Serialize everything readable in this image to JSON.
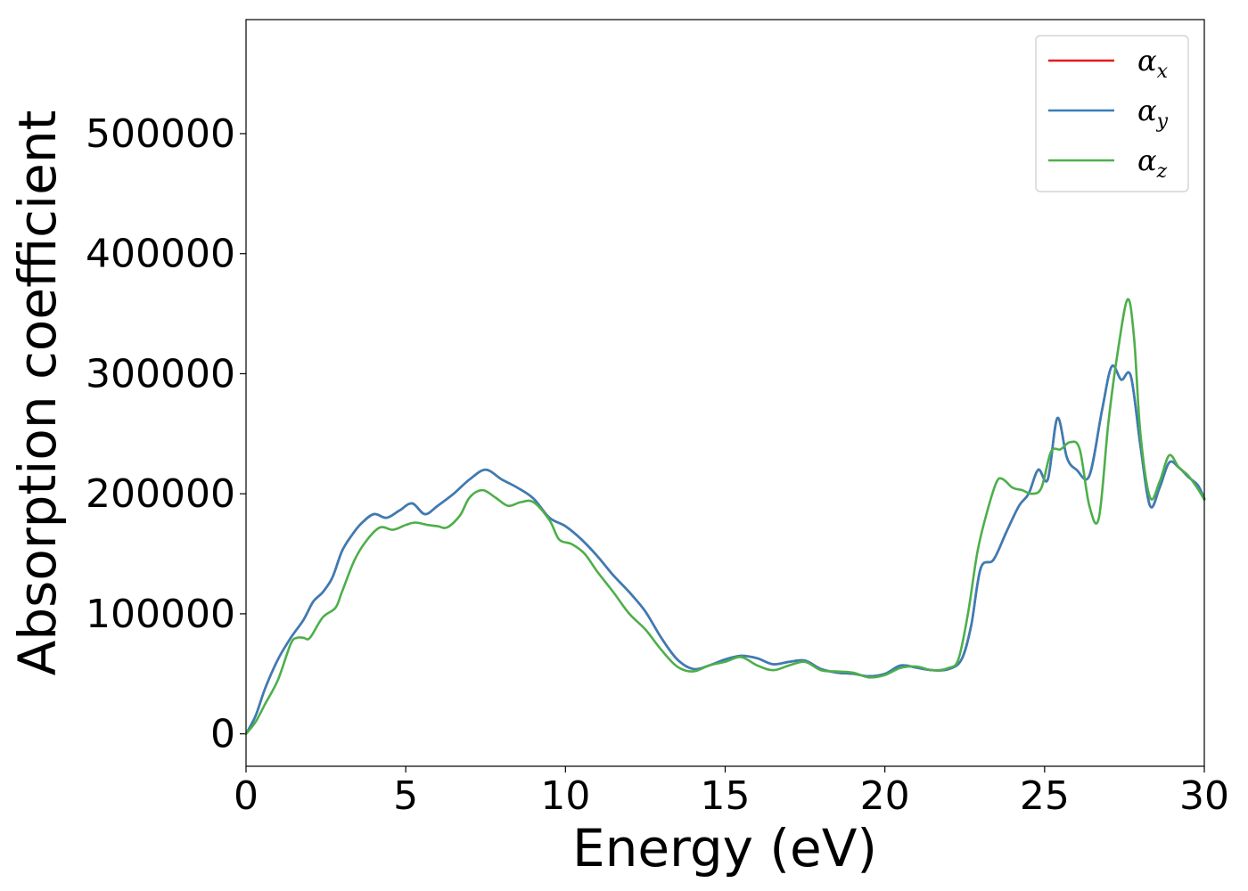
{
  "chart_data": {
    "type": "line",
    "xlabel": "Energy (eV)",
    "ylabel": "Absorption coefficient",
    "xlim": [
      0,
      30
    ],
    "ylim": [
      -27000,
      595000
    ],
    "xticks": [
      0,
      5,
      10,
      15,
      20,
      25,
      30
    ],
    "xtick_labels": [
      "0",
      "5",
      "10",
      "15",
      "20",
      "25",
      "30"
    ],
    "yticks": [
      0,
      100000,
      200000,
      300000,
      400000,
      500000
    ],
    "ytick_labels": [
      "0",
      "100000",
      "200000",
      "300000",
      "400000",
      "500000"
    ],
    "grid": false,
    "legend_position": "top-right",
    "series": [
      {
        "name": "α_x",
        "name_main": "α",
        "name_sub": "x",
        "color": "#e41a1c",
        "x": [
          0,
          0.3,
          0.6,
          1.0,
          1.4,
          1.8,
          2.1,
          2.4,
          2.7,
          3.0,
          3.3,
          3.6,
          4.0,
          4.4,
          4.8,
          5.2,
          5.6,
          6.0,
          6.5,
          7.0,
          7.5,
          8.0,
          8.5,
          9.0,
          9.5,
          10.0,
          10.5,
          11.0,
          11.5,
          12.0,
          12.5,
          13.0,
          13.5,
          14.0,
          14.5,
          15.0,
          15.5,
          16.0,
          16.5,
          17.0,
          17.5,
          18.0,
          18.5,
          19.0,
          19.5,
          20.0,
          20.5,
          21.0,
          21.5,
          22.0,
          22.4,
          22.7,
          23.0,
          23.4,
          23.8,
          24.2,
          24.5,
          24.8,
          25.1,
          25.4,
          25.7,
          26.0,
          26.4,
          26.8,
          27.1,
          27.4,
          27.7,
          28.0,
          28.3,
          28.6,
          28.9,
          29.2,
          29.5,
          29.8,
          30.0
        ],
        "values": [
          0,
          15000,
          38000,
          62000,
          80000,
          95000,
          110000,
          118000,
          130000,
          152000,
          165000,
          175000,
          183000,
          180000,
          186000,
          192000,
          183000,
          190000,
          200000,
          212000,
          220000,
          212000,
          205000,
          196000,
          180000,
          173000,
          162000,
          148000,
          132000,
          118000,
          102000,
          80000,
          62000,
          54000,
          57000,
          62000,
          65000,
          63000,
          58000,
          60000,
          61000,
          54000,
          51000,
          50000,
          48000,
          50000,
          57000,
          55000,
          53000,
          54000,
          62000,
          90000,
          138000,
          145000,
          168000,
          190000,
          200000,
          220000,
          212000,
          263000,
          230000,
          220000,
          215000,
          270000,
          306000,
          295000,
          298000,
          240000,
          190000,
          205000,
          226000,
          222000,
          214000,
          207000,
          196000
        ]
      },
      {
        "name": "α_y",
        "name_main": "α",
        "name_sub": "y",
        "color": "#377eb8",
        "x": [
          0,
          0.3,
          0.6,
          1.0,
          1.4,
          1.8,
          2.1,
          2.4,
          2.7,
          3.0,
          3.3,
          3.6,
          4.0,
          4.4,
          4.8,
          5.2,
          5.6,
          6.0,
          6.5,
          7.0,
          7.5,
          8.0,
          8.5,
          9.0,
          9.5,
          10.0,
          10.5,
          11.0,
          11.5,
          12.0,
          12.5,
          13.0,
          13.5,
          14.0,
          14.5,
          15.0,
          15.5,
          16.0,
          16.5,
          17.0,
          17.5,
          18.0,
          18.5,
          19.0,
          19.5,
          20.0,
          20.5,
          21.0,
          21.5,
          22.0,
          22.4,
          22.7,
          23.0,
          23.4,
          23.8,
          24.2,
          24.5,
          24.8,
          25.1,
          25.4,
          25.7,
          26.0,
          26.4,
          26.8,
          27.1,
          27.4,
          27.7,
          28.0,
          28.3,
          28.6,
          28.9,
          29.2,
          29.5,
          29.8,
          30.0
        ],
        "values": [
          0,
          15000,
          38000,
          62000,
          80000,
          95000,
          110000,
          118000,
          130000,
          152000,
          165000,
          175000,
          183000,
          180000,
          186000,
          192000,
          183000,
          190000,
          200000,
          212000,
          220000,
          212000,
          205000,
          196000,
          180000,
          173000,
          162000,
          148000,
          132000,
          118000,
          102000,
          80000,
          62000,
          54000,
          57000,
          62000,
          65000,
          63000,
          58000,
          60000,
          61000,
          54000,
          51000,
          50000,
          48000,
          50000,
          57000,
          55000,
          53000,
          54000,
          62000,
          90000,
          138000,
          145000,
          168000,
          190000,
          200000,
          220000,
          212000,
          263000,
          230000,
          220000,
          215000,
          270000,
          306000,
          295000,
          298000,
          240000,
          190000,
          205000,
          226000,
          222000,
          214000,
          207000,
          196000
        ]
      },
      {
        "name": "α_z",
        "name_main": "α",
        "name_sub": "z",
        "color": "#4daf4a",
        "x": [
          0,
          0.3,
          0.6,
          1.0,
          1.4,
          1.6,
          1.8,
          2.0,
          2.4,
          2.8,
          3.0,
          3.4,
          3.8,
          4.2,
          4.6,
          5.0,
          5.3,
          5.7,
          6.0,
          6.3,
          6.7,
          7.0,
          7.4,
          7.8,
          8.2,
          8.6,
          9.0,
          9.5,
          9.8,
          10.2,
          10.6,
          11.0,
          11.5,
          12.0,
          12.5,
          13.0,
          13.5,
          14.0,
          14.5,
          15.0,
          15.5,
          16.0,
          16.5,
          17.0,
          17.5,
          18.0,
          18.5,
          19.0,
          19.5,
          20.0,
          20.5,
          21.0,
          21.5,
          22.0,
          22.3,
          22.6,
          22.9,
          23.2,
          23.5,
          23.7,
          24.0,
          24.3,
          24.6,
          24.9,
          25.2,
          25.5,
          25.8,
          26.1,
          26.4,
          26.7,
          27.0,
          27.3,
          27.6,
          27.8,
          28.0,
          28.3,
          28.6,
          28.9,
          29.2,
          29.5,
          29.8,
          30.0
        ],
        "values": [
          0,
          10000,
          25000,
          45000,
          75000,
          80000,
          80000,
          80000,
          97000,
          105000,
          118000,
          145000,
          162000,
          172000,
          170000,
          174000,
          176000,
          174000,
          173000,
          172000,
          182000,
          197000,
          203000,
          197000,
          190000,
          193000,
          193000,
          178000,
          162000,
          158000,
          150000,
          135000,
          118000,
          100000,
          87000,
          70000,
          56000,
          52000,
          57000,
          60000,
          64000,
          57000,
          53000,
          57000,
          60000,
          53000,
          52000,
          51000,
          47000,
          49000,
          55000,
          56000,
          53000,
          55000,
          62000,
          100000,
          152000,
          185000,
          210000,
          212000,
          205000,
          203000,
          200000,
          205000,
          235000,
          237000,
          243000,
          237000,
          190000,
          180000,
          260000,
          320000,
          362000,
          330000,
          250000,
          197000,
          210000,
          232000,
          222000,
          215000,
          204000,
          195000
        ]
      }
    ]
  }
}
